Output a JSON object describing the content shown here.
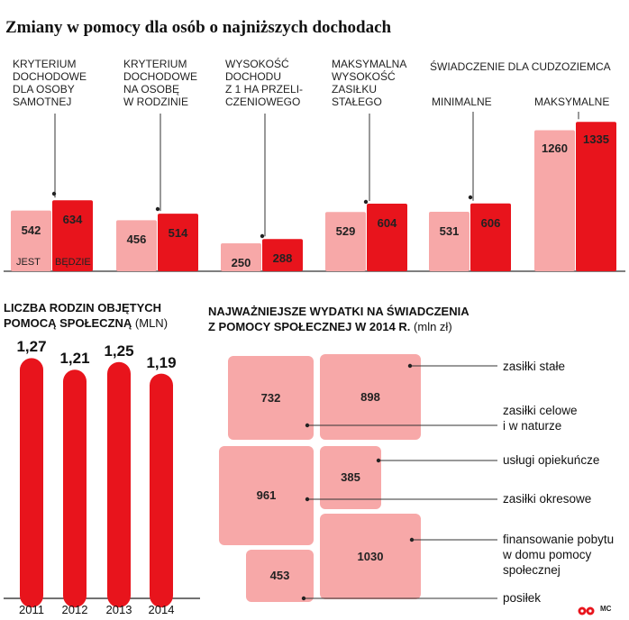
{
  "title": "Zmiany w pomocy dla osób o najniższych dochodach",
  "colors": {
    "jest": "#f7a8a8",
    "bedzie": "#e8141c",
    "tree": "#f7a8a8"
  },
  "legend": {
    "jest": "JEST",
    "bedzie": "BĘDZIE"
  },
  "section2_title": [
    "LICZBA RODZIN OBJĘTYCH",
    "POMOCĄ SPOŁECZNĄ"
  ],
  "section2_unit": "(MLN)",
  "section3_title": [
    "NAJWAŻNIEJSZE WYDATKI NA ŚWIADCZENIA",
    "Z POMOCY SPOŁECZNEJ W 2014 R."
  ],
  "section3_unit": "(mln zł)",
  "credit": "MC",
  "chart_data": [
    {
      "type": "bar",
      "title": "Zmiany w pomocy dla osób o najniższych dochodach",
      "categories": [
        "KRYTERIUM DOCHODOWE DLA OSOBY SAMOTNEJ",
        "KRYTERIUM DOCHODOWE NA OSOBĘ W RODZINIE",
        "WYSOKOŚĆ DOCHODU Z 1 HA PRZELICZENIOWEGO",
        "MAKSYMALNA WYSOKOŚĆ ZASIŁKU STAŁEGO",
        "ŚWIADCZENIE DLA CUDZOZIEMCA MINIMALNE",
        "ŚWIADCZENIE DLA CUDZOZIEMCA MAKSYMALNE"
      ],
      "label_lines": [
        [
          "KRYTERIUM",
          "DOCHODOWE",
          "DLA OSOBY",
          "SAMOTNEJ"
        ],
        [
          "KRYTERIUM",
          "DOCHODOWE",
          "NA OSOBĘ",
          "W RODZINIE"
        ],
        [
          "WYSOKOŚĆ",
          "DOCHODU",
          "Z 1 HA PRZELI-",
          "CZENIOWEGO"
        ],
        [
          "MAKSYMALNA",
          "WYSOKOŚĆ",
          "ZASIŁKU",
          "STAŁEGO"
        ],
        [
          "MINIMALNE"
        ],
        [
          "MAKSYMALNE"
        ]
      ],
      "group_label": "ŚWIADCZENIE DLA CUDZOZIEMCA",
      "series": [
        {
          "name": "JEST",
          "values": [
            542,
            456,
            250,
            529,
            531,
            1260
          ]
        },
        {
          "name": "BĘDZIE",
          "values": [
            634,
            514,
            288,
            604,
            606,
            1335
          ]
        }
      ],
      "ylim": [
        0,
        1400
      ]
    },
    {
      "type": "bar",
      "title": "LICZBA RODZIN OBJĘTYCH POMOCĄ SPOŁECZNĄ (MLN)",
      "categories": [
        "2011",
        "2012",
        "2013",
        "2014"
      ],
      "values": [
        1.27,
        1.21,
        1.25,
        1.19
      ],
      "value_labels": [
        "1,27",
        "1,21",
        "1,25",
        "1,19"
      ]
    },
    {
      "type": "treemap",
      "title": "NAJWAŻNIEJSZE WYDATKI NA ŚWIADCZENIA Z POMOCY SPOŁECZNEJ W 2014 R. (mln zł)",
      "items": [
        {
          "label": "zasiłki stałe",
          "value": 898
        },
        {
          "label": "zasiłki celowe i w naturze",
          "value": 732
        },
        {
          "label": "usługi opiekuńcze",
          "value": 385
        },
        {
          "label": "zasiłki okresowe",
          "value": 961
        },
        {
          "label": "finansowanie pobytu w domu pomocy społecznej",
          "value": 1030
        },
        {
          "label": "posiłek",
          "value": 453
        }
      ]
    }
  ]
}
